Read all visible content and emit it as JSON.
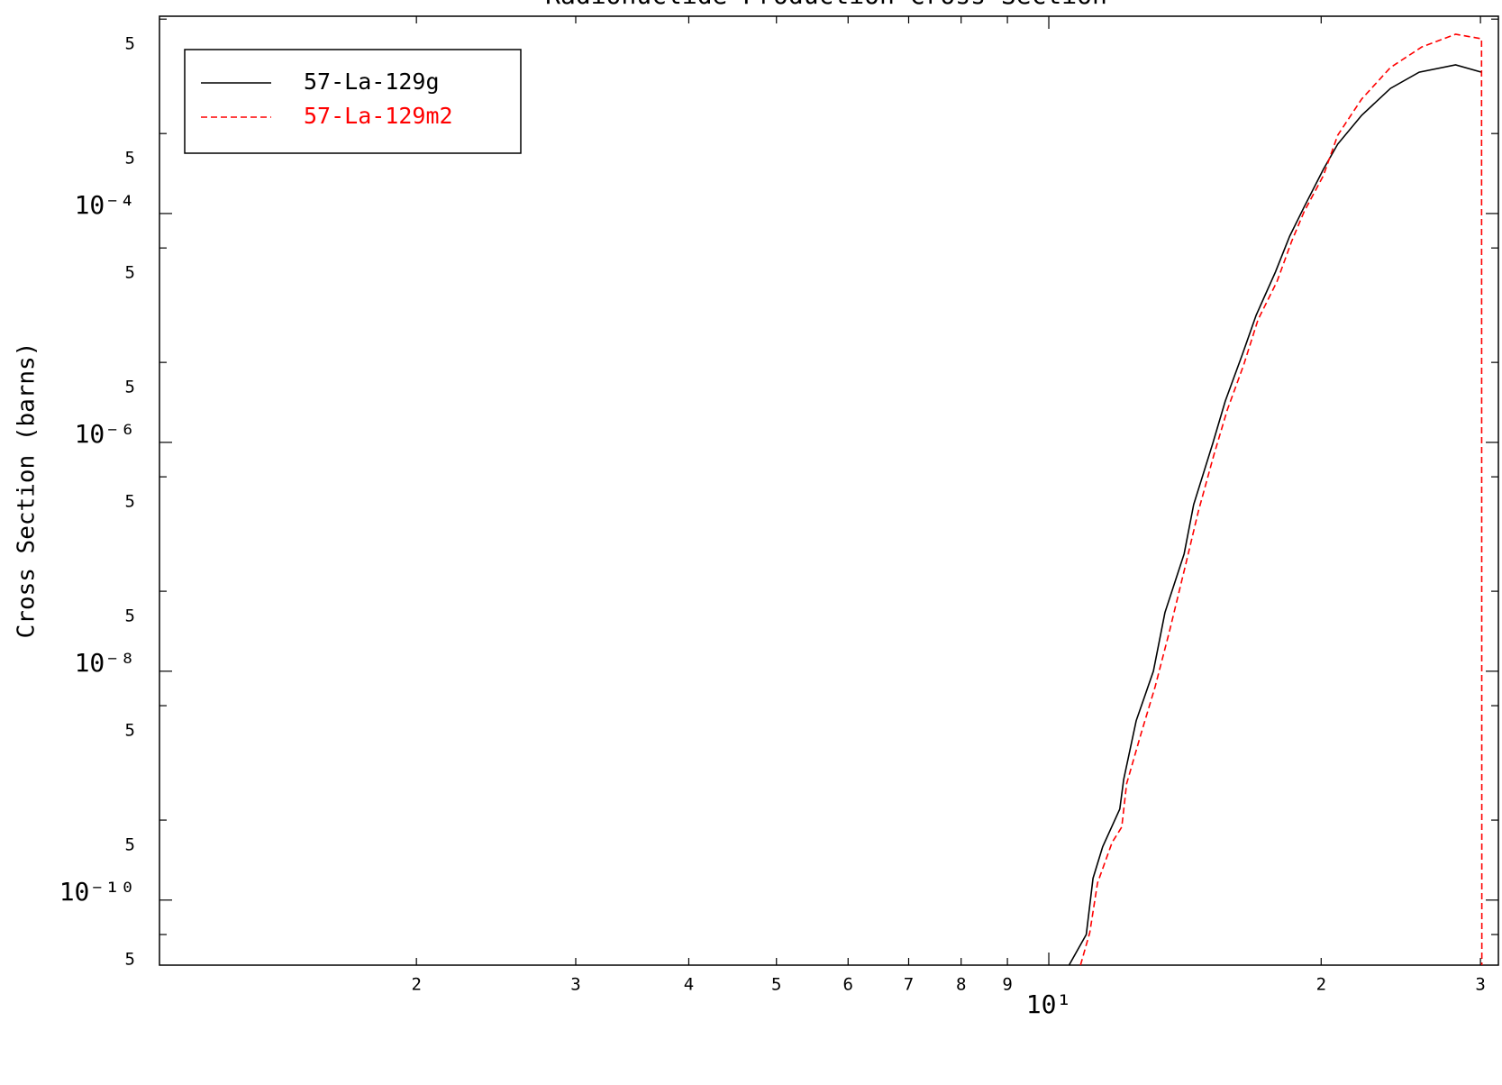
{
  "chart_data": {
    "type": "line",
    "title": "Radionuclide Production Cross Section",
    "y_label": "Cross Section (barns)",
    "xscale": "log",
    "yscale": "log",
    "legend": "upper left",
    "xlim": [
      1.04,
      31.4
    ],
    "ylim": [
      2.7e-11,
      0.0053
    ],
    "xticks": [
      2,
      3,
      4,
      5,
      6,
      7,
      8,
      9,
      {
        "value": 10,
        "label": "10¹"
      },
      {
        "value": 20,
        "label": "2"
      },
      {
        "value": 30,
        "label": "3"
      }
    ],
    "yticks": [
      {
        "value": 0.005,
        "label": "5"
      },
      {
        "value": 0.0005,
        "label": "5"
      },
      {
        "value": 0.0001,
        "label": "10⁻⁴"
      },
      {
        "value": 5e-05,
        "label": "5"
      },
      {
        "value": 5e-06,
        "label": "5"
      },
      {
        "value": 1e-06,
        "label": "10⁻⁶"
      },
      {
        "value": 5e-07,
        "label": "5"
      },
      {
        "value": 5e-08,
        "label": "5"
      },
      {
        "value": 1e-08,
        "label": "10⁻⁸"
      },
      {
        "value": 5e-09,
        "label": "5"
      },
      {
        "value": 5e-10,
        "label": "5"
      },
      {
        "value": 1e-10,
        "label": "10⁻¹⁰"
      },
      {
        "value": 5e-11,
        "label": "5"
      }
    ],
    "series": [
      {
        "name": "57-La-129g",
        "color": "#000000",
        "dash": false,
        "x": [
          10.53,
          11.0,
          11.19,
          11.47,
          11.98,
          12.1,
          12.49,
          13.05,
          13.44,
          14.11,
          14.46,
          15.18,
          15.67,
          16.37,
          16.95,
          17.8,
          18.46,
          19.15,
          20.11,
          20.86,
          22.17,
          23.86,
          25.67,
          28.16,
          30.08
        ],
        "values": [
          2.7e-11,
          5e-11,
          1.55e-10,
          2.92e-10,
          6.24e-10,
          1.13e-09,
          3.69e-09,
          1e-08,
          3.25e-08,
          1.06e-07,
          2.86e-07,
          9.8e-07,
          2.3e-06,
          5.91e-06,
          1.29e-05,
          3.08e-05,
          6.35e-05,
          0.000114,
          0.000243,
          0.000404,
          0.000721,
          0.00124,
          0.00172,
          0.00199,
          0.00172
        ]
      },
      {
        "name": "57-La-129m2",
        "color": "#ff0000",
        "dash": true,
        "x": [
          10.84,
          11.1,
          11.32,
          11.75,
          12.04,
          12.19,
          12.64,
          13.11,
          13.6,
          14.18,
          14.63,
          15.22,
          15.75,
          16.42,
          17.03,
          17.88,
          18.55,
          19.15,
          20.11,
          20.86,
          22.17,
          23.86,
          25.85,
          28.16,
          30.08,
          30.11
        ],
        "values": [
          2.7e-11,
          5.21e-11,
          1.41e-10,
          3.19e-10,
          4.35e-10,
          1.04e-09,
          2.81e-09,
          7.35e-09,
          2.26e-08,
          8.81e-08,
          2.48e-07,
          7.76e-07,
          1.92e-06,
          4.75e-06,
          1.18e-05,
          2.56e-05,
          5.7e-05,
          0.000104,
          0.000214,
          0.000484,
          0.001,
          0.00189,
          0.00286,
          0.00369,
          0.00337,
          1e-12
        ]
      }
    ]
  }
}
